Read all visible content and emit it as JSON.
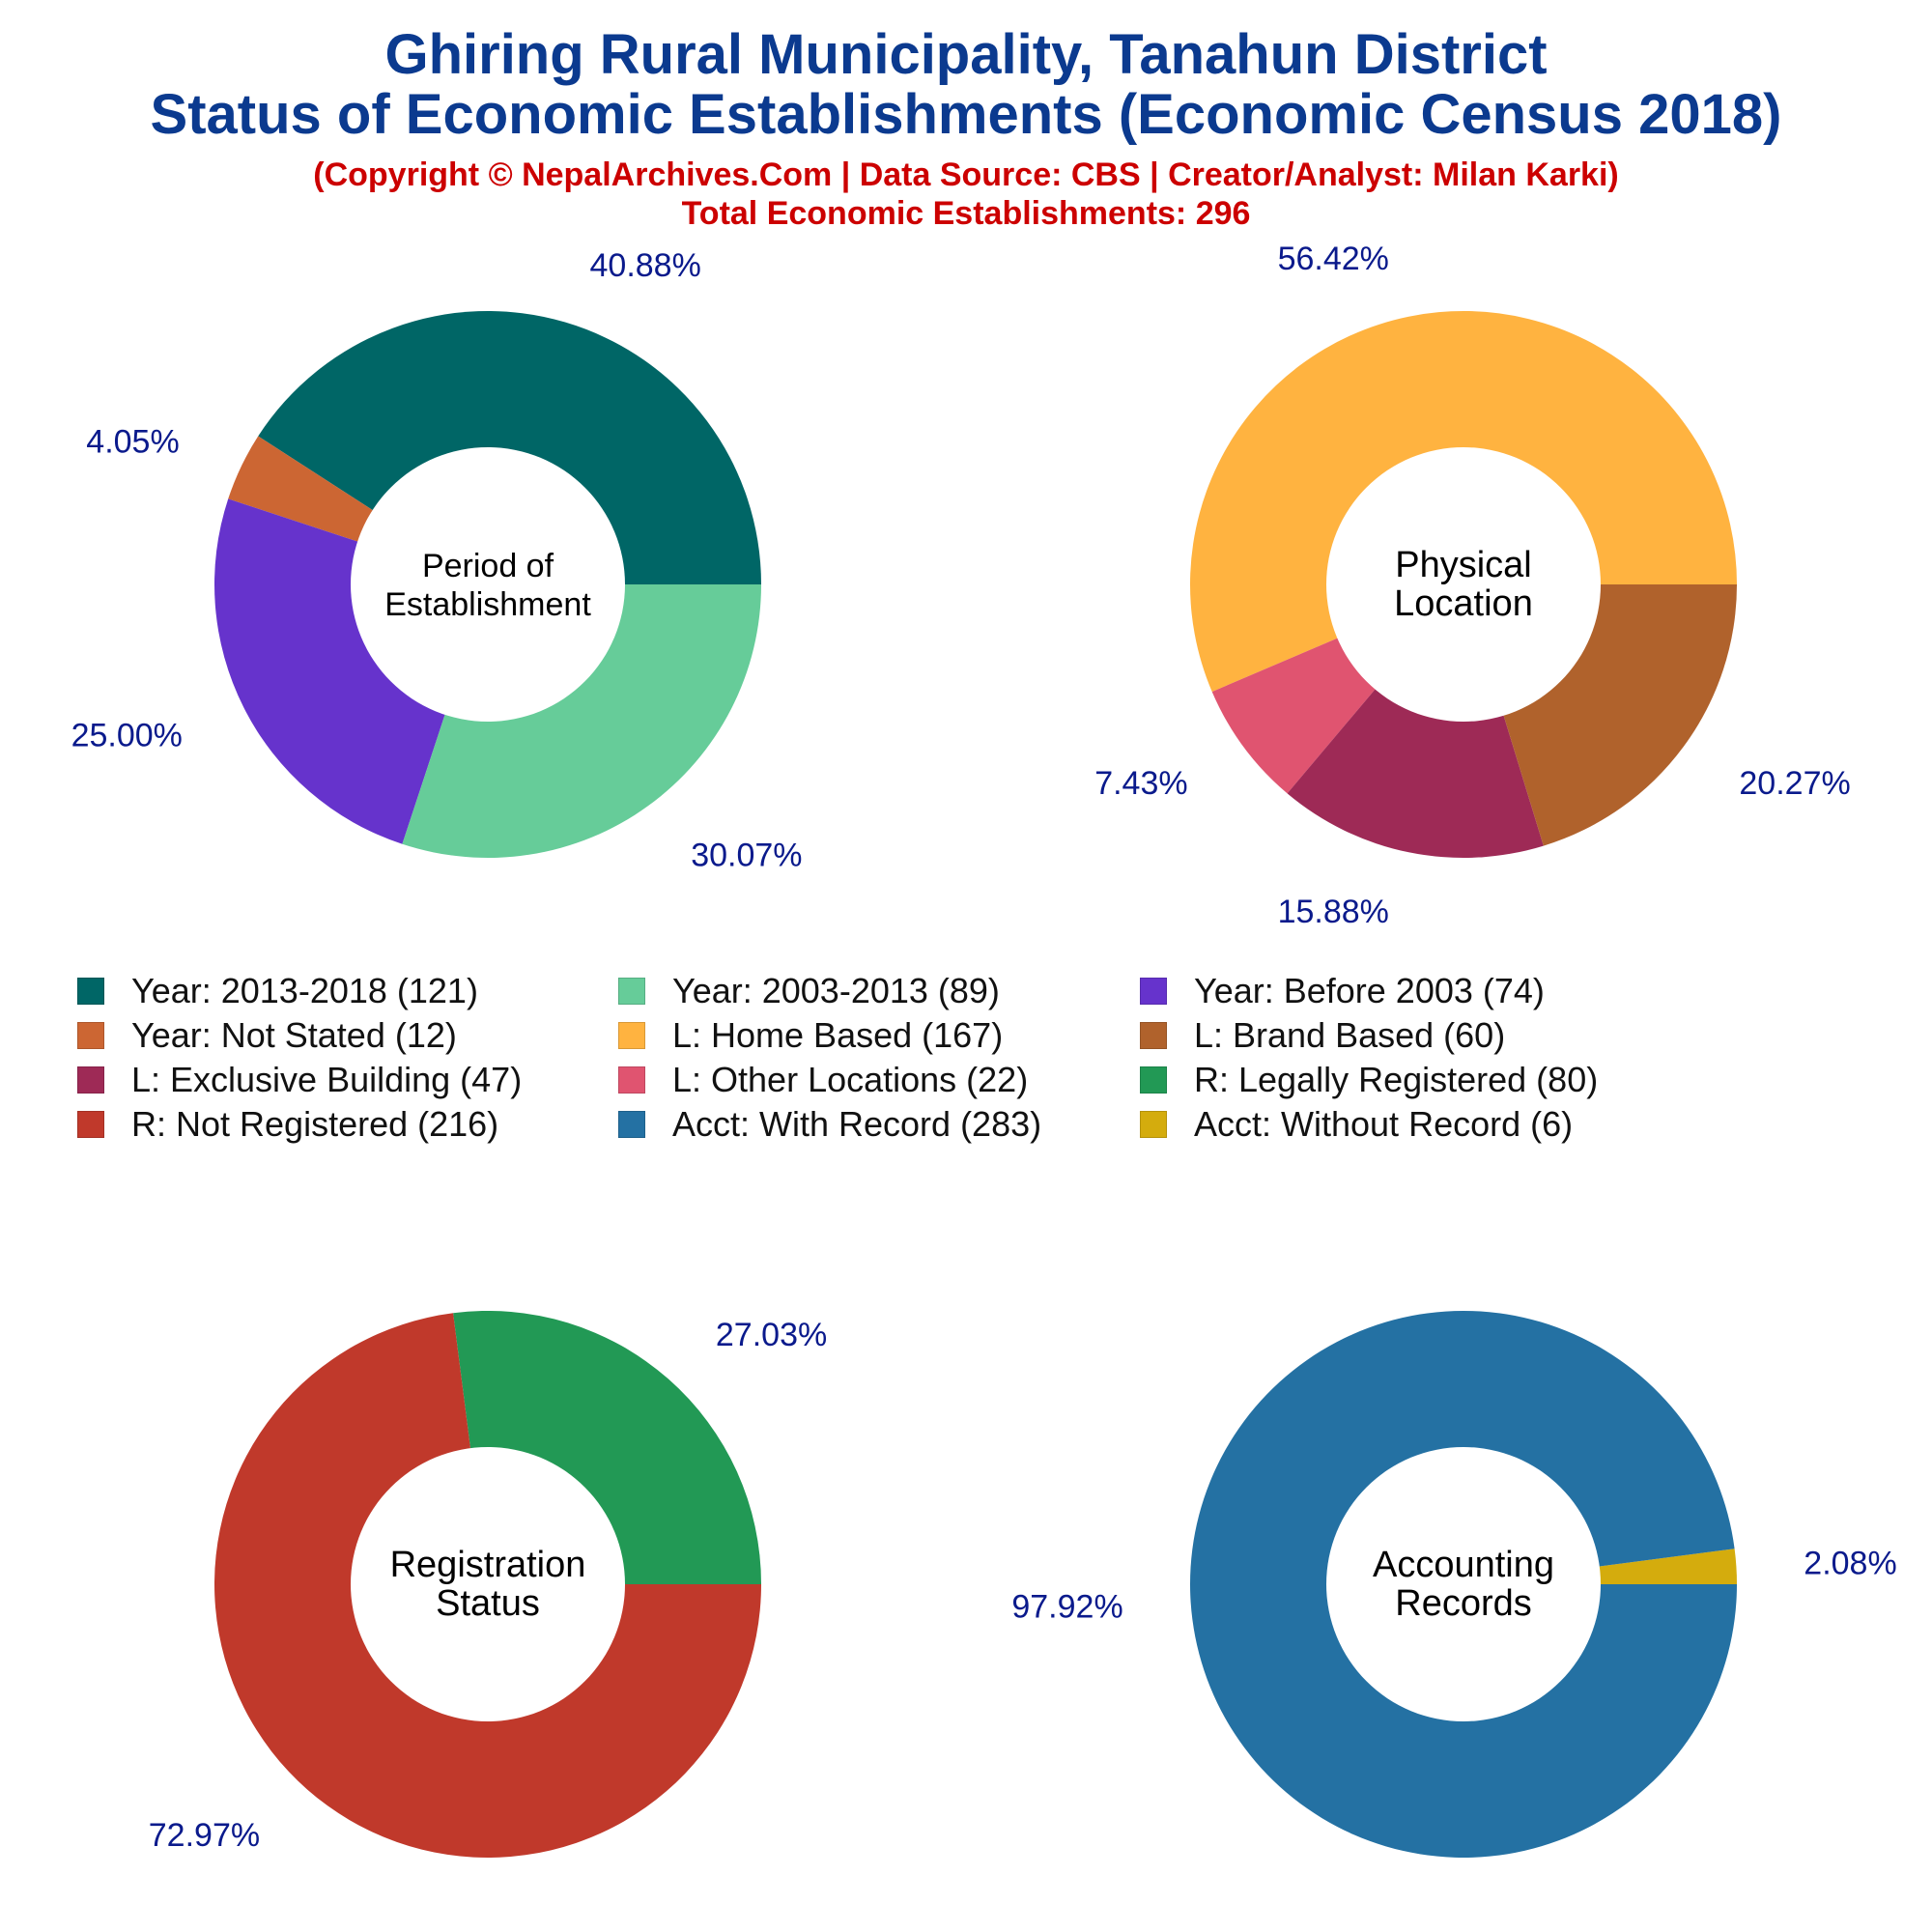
{
  "header": {
    "title_line1": "Ghiring Rural Municipality, Tanahun District",
    "title_line2": "Status of Economic Establishments (Economic Census 2018)",
    "copyright": "(Copyright © NepalArchives.Com | Data Source: CBS | Creator/Analyst: Milan Karki)",
    "total": "Total Economic Establishments: 296"
  },
  "chart_data": [
    {
      "type": "pie",
      "donut": true,
      "center_label": [
        "Period of",
        "Establishment"
      ],
      "slices": [
        {
          "label": "Year: 2013-2018",
          "value": 121,
          "percent_label": "40.88%",
          "color": "#006666"
        },
        {
          "label": "Year: Not Stated",
          "value": 12,
          "percent_label": "4.05%",
          "color": "#cc6633"
        },
        {
          "label": "Year: Before 2003",
          "value": 74,
          "percent_label": "25.00%",
          "color": "#6633cc"
        },
        {
          "label": "Year: 2003-2013",
          "value": 89,
          "percent_label": "30.07%",
          "color": "#66cc99"
        }
      ]
    },
    {
      "type": "pie",
      "donut": true,
      "center_label": [
        "Physical",
        "Location"
      ],
      "slices": [
        {
          "label": "L: Home Based",
          "value": 167,
          "percent_label": "56.42%",
          "color": "#ffb340"
        },
        {
          "label": "L: Other Locations",
          "value": 22,
          "percent_label": "7.43%",
          "color": "#e05470"
        },
        {
          "label": "L: Exclusive Building",
          "value": 47,
          "percent_label": "15.88%",
          "color": "#9e2a56"
        },
        {
          "label": "L: Brand Based",
          "value": 60,
          "percent_label": "20.27%",
          "color": "#b0622c"
        }
      ]
    },
    {
      "type": "pie",
      "donut": true,
      "center_label": [
        "Registration",
        "Status"
      ],
      "slices": [
        {
          "label": "R: Legally Registered",
          "value": 80,
          "percent_label": "27.03%",
          "color": "#229955"
        },
        {
          "label": "R: Not Registered",
          "value": 216,
          "percent_label": "72.97%",
          "color": "#c0392b"
        }
      ]
    },
    {
      "type": "pie",
      "donut": true,
      "center_label": [
        "Accounting",
        "Records"
      ],
      "slices": [
        {
          "label": "Acct: Without Record",
          "value": 6,
          "percent_label": "2.08%",
          "color": "#d4ac0d"
        },
        {
          "label": "Acct: With Record",
          "value": 283,
          "percent_label": "97.92%",
          "color": "#2471a3"
        }
      ]
    }
  ],
  "legend": [
    {
      "text": "Year: 2013-2018 (121)",
      "color": "#006666"
    },
    {
      "text": "Year: 2003-2013 (89)",
      "color": "#66cc99"
    },
    {
      "text": "Year: Before 2003 (74)",
      "color": "#6633cc"
    },
    {
      "text": "Year: Not Stated (12)",
      "color": "#cc6633"
    },
    {
      "text": "L: Home Based (167)",
      "color": "#ffb340"
    },
    {
      "text": "L: Brand Based (60)",
      "color": "#b0622c"
    },
    {
      "text": "L: Exclusive Building (47)",
      "color": "#9e2a56"
    },
    {
      "text": "L: Other Locations (22)",
      "color": "#e05470"
    },
    {
      "text": "R: Legally Registered (80)",
      "color": "#229955"
    },
    {
      "text": "R: Not Registered (216)",
      "color": "#c0392b"
    },
    {
      "text": "Acct: With Record (283)",
      "color": "#2471a3"
    },
    {
      "text": "Acct: Without Record (6)",
      "color": "#d4ac0d"
    }
  ]
}
